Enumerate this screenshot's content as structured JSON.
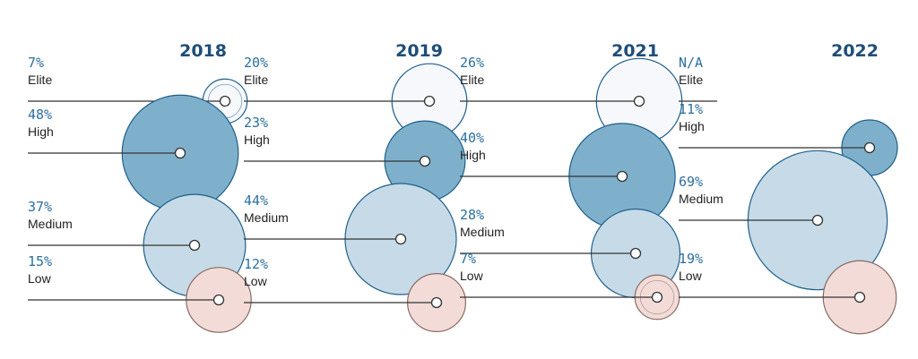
{
  "chart_data": {
    "type": "bubble",
    "categories": [
      "Elite",
      "High",
      "Medium",
      "Low"
    ],
    "colors": {
      "Elite": "#f6f8fb",
      "High": "#7fb0cb",
      "Medium": "#c6dbe7",
      "Low": "#f3dcd8",
      "outline": "#1f5f8b",
      "low_outline": "#8a6a66"
    },
    "panels": [
      {
        "year": "2018",
        "items": [
          {
            "cluster": "Elite",
            "label": "Elite",
            "pct_text": "7%",
            "value": 7
          },
          {
            "cluster": "High",
            "label": "High",
            "pct_text": "48%",
            "value": 48
          },
          {
            "cluster": "Medium",
            "label": "Medium",
            "pct_text": "37%",
            "value": 37
          },
          {
            "cluster": "Low",
            "label": "Low",
            "pct_text": "15%",
            "value": 15
          }
        ]
      },
      {
        "year": "2019",
        "items": [
          {
            "cluster": "Elite",
            "label": "Elite",
            "pct_text": "20%",
            "value": 20
          },
          {
            "cluster": "High",
            "label": "High",
            "pct_text": "23%",
            "value": 23
          },
          {
            "cluster": "Medium",
            "label": "Medium",
            "pct_text": "44%",
            "value": 44
          },
          {
            "cluster": "Low",
            "label": "Low",
            "pct_text": "12%",
            "value": 12
          }
        ]
      },
      {
        "year": "2021",
        "items": [
          {
            "cluster": "Elite",
            "label": "Elite",
            "pct_text": "26%",
            "value": 26
          },
          {
            "cluster": "High",
            "label": "High",
            "pct_text": "40%",
            "value": 40
          },
          {
            "cluster": "Medium",
            "label": "Medium",
            "pct_text": "28%",
            "value": 28
          },
          {
            "cluster": "Low",
            "label": "Low",
            "pct_text": "7%",
            "value": 7
          }
        ]
      },
      {
        "year": "2022",
        "items": [
          {
            "cluster": "Elite",
            "label": "Elite",
            "pct_text": "N/A",
            "value": null
          },
          {
            "cluster": "High",
            "label": "High",
            "pct_text": "11%",
            "value": 11
          },
          {
            "cluster": "Medium",
            "label": "Medium",
            "pct_text": "69%",
            "value": 69
          },
          {
            "cluster": "Low",
            "label": "Low",
            "pct_text": "19%",
            "value": 19
          }
        ]
      }
    ]
  }
}
